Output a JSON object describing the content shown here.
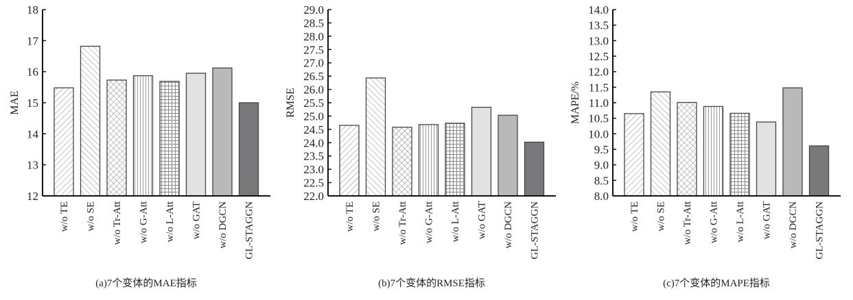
{
  "chart_data": [
    {
      "type": "bar",
      "caption": "(a)7个变体的MAE指标",
      "ylabel": "MAE",
      "ylim": [
        12,
        18
      ],
      "yticks": [
        12,
        13,
        14,
        15,
        16,
        17,
        18
      ],
      "tick_decimals": 0,
      "categories": [
        "w/o TE",
        "w/o SE",
        "w/o Tr-Att",
        "w/o G-Att",
        "w/o L-Att",
        "w/o GAT",
        "w/o DGCN",
        "GL-STAGGN"
      ],
      "values": [
        15.48,
        16.82,
        15.73,
        15.87,
        15.69,
        15.95,
        16.12,
        15.0
      ]
    },
    {
      "type": "bar",
      "caption": "(b)7个变体的RMSE指标",
      "ylabel": "RMSE",
      "ylim": [
        22.0,
        29.0
      ],
      "yticks": [
        22.0,
        22.5,
        23.0,
        23.5,
        24.0,
        24.5,
        25.0,
        25.5,
        26.0,
        26.5,
        27.0,
        27.5,
        28.0,
        28.5,
        29.0
      ],
      "tick_decimals": 1,
      "categories": [
        "w/o TE",
        "w/o SE",
        "w/o Tr-Att",
        "w/o G-Att",
        "w/o L-Att",
        "w/o GAT",
        "w/o DGCN",
        "GL-STAGGN"
      ],
      "values": [
        24.65,
        26.43,
        24.58,
        24.68,
        24.73,
        25.33,
        25.03,
        24.02
      ]
    },
    {
      "type": "bar",
      "caption": "(c)7个变体的MAPE指标",
      "ylabel": "MAPE/%",
      "ylim": [
        8.0,
        14.0
      ],
      "yticks": [
        8.0,
        8.5,
        9.0,
        9.5,
        10.0,
        10.5,
        11.0,
        11.5,
        12.0,
        12.5,
        13.0,
        13.5,
        14.0
      ],
      "tick_decimals": 1,
      "categories": [
        "w/o TE",
        "w/o SE",
        "w/o Tr-Att",
        "w/o G-Att",
        "w/o L-Att",
        "w/o GAT",
        "w/o DGCN",
        "GL-STAGGN"
      ],
      "values": [
        10.65,
        11.35,
        11.01,
        10.88,
        10.66,
        10.38,
        11.48,
        9.61
      ]
    }
  ],
  "bar_fills": [
    "hatch-forward",
    "hatch-backward",
    "crosshatch-diagonal",
    "vertical-lines",
    "grid",
    "#e2e2e2",
    "#b9b9b9",
    "#79797b"
  ],
  "axis_color": "#111111",
  "bar_stroke": "#444444"
}
